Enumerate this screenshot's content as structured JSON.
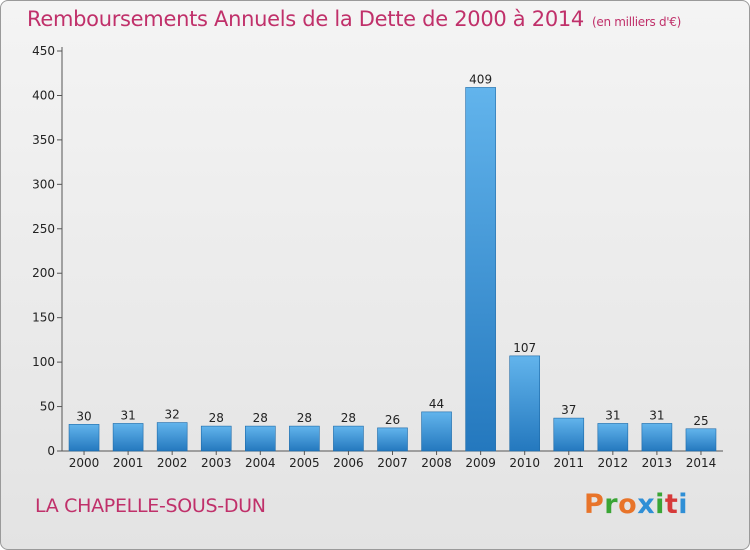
{
  "header": {
    "title": "Remboursements Annuels de la Dette de 2000 à 2014",
    "unit": "(en milliers d'€)"
  },
  "footer": {
    "commune": "LA CHAPELLE-SOUS-DUN",
    "logo_text": "Proxiti",
    "logo_colors": [
      "#e8742a",
      "#3aa535",
      "#e8742a",
      "#2f8fd6",
      "#3aa535",
      "#d63a3a",
      "#2f8fd6"
    ]
  },
  "colors": {
    "title": "#c0306a",
    "bar_light": "#62b4ec",
    "bar_dark": "#2478be",
    "axis": "#555555",
    "grid": "#d8d8d8"
  },
  "chart_data": {
    "type": "bar",
    "title": "Remboursements Annuels de la Dette de 2000 à 2014",
    "xlabel": "",
    "ylabel": "",
    "categories": [
      "2000",
      "2001",
      "2002",
      "2003",
      "2004",
      "2005",
      "2006",
      "2007",
      "2008",
      "2009",
      "2010",
      "2011",
      "2012",
      "2013",
      "2014"
    ],
    "values": [
      30,
      31,
      32,
      28,
      28,
      28,
      28,
      26,
      44,
      409,
      107,
      37,
      31,
      31,
      25
    ],
    "ylim": [
      0,
      450
    ],
    "yticks": [
      0,
      50,
      100,
      150,
      200,
      250,
      300,
      350,
      400,
      450
    ],
    "grid": false,
    "data_labels": true
  }
}
